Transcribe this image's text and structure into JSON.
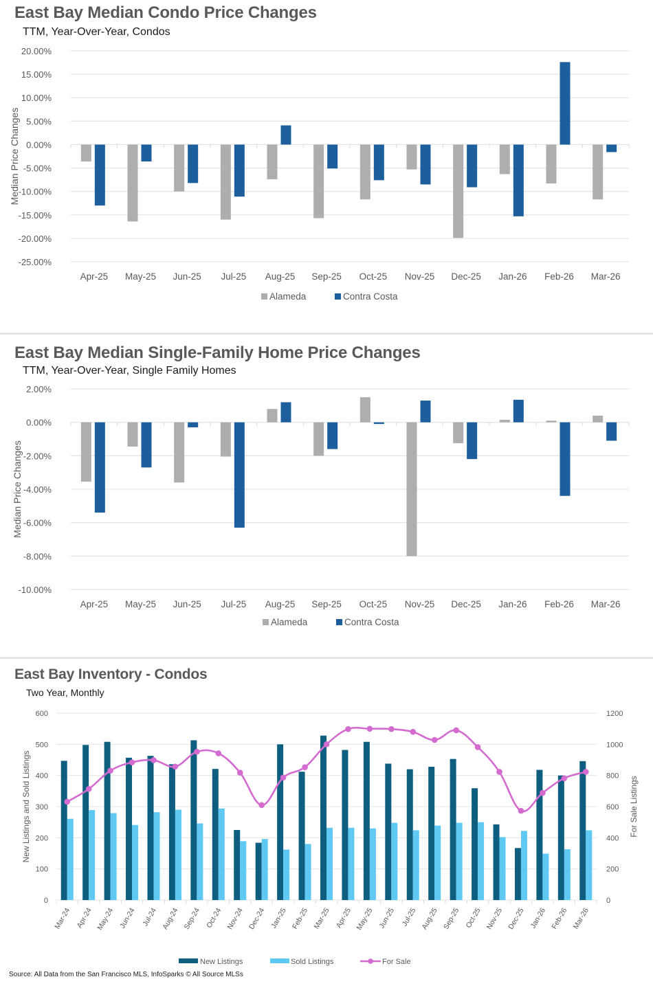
{
  "page": {
    "source_note": "Source: All Data from the San Francisco MLS, InfoSparks © All Source MLSs"
  },
  "colors": {
    "alameda": "#AEAEAE",
    "contra_costa": "#1C5F9C",
    "new_listings": "#0E5E80",
    "sold_listings": "#5FC9F3",
    "for_sale": "#D36BD0",
    "gridline": "#E5E5E5",
    "axis_text": "#595959"
  },
  "chart_data": [
    {
      "type": "bar",
      "title": "East Bay Median Condo Price Changes",
      "subtitle": "TTM, Year-Over-Year,  Condos",
      "xlabel": "",
      "ylabel": "Median Price Changes",
      "ylim": [
        -25,
        20
      ],
      "yticks": [
        20,
        15,
        10,
        5,
        0,
        -5,
        -10,
        -15,
        -20,
        -25
      ],
      "ytick_labels": [
        "20.00%",
        "15.00%",
        "10.00%",
        "5.00%",
        "0.00%",
        "-5.00%",
        "-10.00%",
        "-15.00%",
        "-20.00%",
        "-25.00%"
      ],
      "grid": true,
      "legend_position": "bottom",
      "categories": [
        "Apr-25",
        "May-25",
        "Jun-25",
        "Jul-25",
        "Aug-25",
        "Sep-25",
        "Oct-25",
        "Nov-25",
        "Dec-25",
        "Jan-26",
        "Feb-26",
        "Mar-26"
      ],
      "series": [
        {
          "name": "Alameda",
          "values": [
            -3.6,
            -16.4,
            -10.0,
            -16.0,
            -7.4,
            -15.7,
            -11.7,
            -5.3,
            -19.9,
            -6.3,
            -8.3,
            -11.7
          ]
        },
        {
          "name": "Contra Costa",
          "values": [
            -13.0,
            -3.6,
            -8.2,
            -11.1,
            4.1,
            -5.1,
            -7.6,
            -8.5,
            -9.1,
            -15.3,
            17.6,
            -1.6
          ]
        }
      ]
    },
    {
      "type": "bar",
      "title": "East Bay Median Single-Family Home Price Changes",
      "subtitle": "TTM, Year-Over-Year, Single Family Homes",
      "xlabel": "",
      "ylabel": "Median Price Changes",
      "ylim": [
        -10,
        2
      ],
      "yticks": [
        2,
        0,
        -2,
        -4,
        -6,
        -8,
        -10
      ],
      "ytick_labels": [
        "2.00%",
        "0.00%",
        "-2.00%",
        "-4.00%",
        "-6.00%",
        "-8.00%",
        "-10.00%"
      ],
      "grid": true,
      "legend_position": "bottom",
      "categories": [
        "Apr-25",
        "May-25",
        "Jun-25",
        "Jul-25",
        "Aug-25",
        "Sep-25",
        "Oct-25",
        "Nov-25",
        "Dec-25",
        "Jan-26",
        "Feb-26",
        "Mar-26"
      ],
      "series": [
        {
          "name": "Alameda",
          "values": [
            -3.55,
            -1.45,
            -3.6,
            -2.05,
            0.8,
            -2.0,
            1.5,
            -8.0,
            -1.25,
            0.15,
            0.1,
            0.4
          ]
        },
        {
          "name": "Contra Costa",
          "values": [
            -5.4,
            -2.7,
            -0.3,
            -6.3,
            1.2,
            -1.6,
            -0.1,
            1.3,
            -2.2,
            1.35,
            -4.4,
            -1.1
          ]
        }
      ]
    },
    {
      "type": "bar",
      "title": "East Bay Inventory - Condos",
      "subtitle": "Two Year, Monthly",
      "xlabel": "",
      "ylabel": "New Listings and Sold Listings",
      "y2label": "For Sale Listings",
      "ylim": [
        0,
        600
      ],
      "y2lim": [
        0,
        1200
      ],
      "yticks": [
        0,
        100,
        200,
        300,
        400,
        500,
        600
      ],
      "y2ticks": [
        0,
        200,
        400,
        600,
        800,
        1000,
        1200
      ],
      "grid": true,
      "legend_position": "bottom",
      "categories": [
        "Mar-24",
        "Apr-24",
        "May-24",
        "Jun-24",
        "Jul-24",
        "Aug-24",
        "Sep-24",
        "Oct-24",
        "Nov-24",
        "Dec-24",
        "Jan-25",
        "Feb-25",
        "Mar-25",
        "Apr-25",
        "May-25",
        "Jun-25",
        "Jul-25",
        "Aug-25",
        "Sep-25",
        "Oct-25",
        "Nov-25",
        "Dec-25",
        "Jan-26",
        "Feb-26",
        "Mar-26"
      ],
      "series": [
        {
          "name": "New Listings",
          "type": "bar",
          "axis": "left",
          "values": [
            447,
            498,
            508,
            457,
            463,
            436,
            513,
            421,
            225,
            184,
            500,
            412,
            528,
            482,
            508,
            438,
            420,
            428,
            453,
            359,
            243,
            167,
            418,
            400,
            446
          ]
        },
        {
          "name": "Sold Listings",
          "type": "bar",
          "axis": "left",
          "values": [
            261,
            289,
            279,
            241,
            282,
            290,
            246,
            294,
            189,
            196,
            162,
            180,
            232,
            232,
            230,
            248,
            224,
            239,
            248,
            250,
            202,
            222,
            149,
            163,
            224
          ]
        },
        {
          "name": "For Sale",
          "type": "line",
          "axis": "right",
          "values": [
            631,
            713,
            831,
            884,
            898,
            857,
            952,
            942,
            818,
            610,
            787,
            853,
            1000,
            1098,
            1100,
            1098,
            1080,
            1028,
            1090,
            982,
            823,
            573,
            688,
            782,
            823
          ]
        }
      ]
    }
  ]
}
